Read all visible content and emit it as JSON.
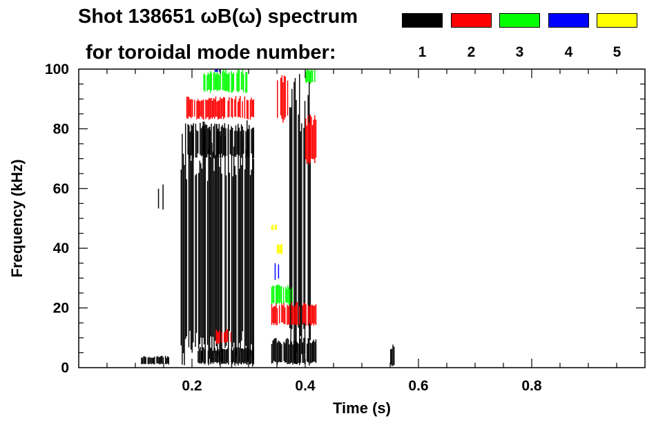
{
  "title": {
    "line1": "Shot 138651 ωB(ω) spectrum",
    "line2": "for toroidal mode number:"
  },
  "legend": {
    "items": [
      {
        "label": "1",
        "color": "#000000"
      },
      {
        "label": "2",
        "color": "#ff0000"
      },
      {
        "label": "3",
        "color": "#00ff00"
      },
      {
        "label": "4",
        "color": "#0000ff"
      },
      {
        "label": "5",
        "color": "#ffff00"
      }
    ]
  },
  "chart_data": {
    "type": "heatmap",
    "title": "Shot 138651 ωB(ω) spectrum for toroidal mode number:",
    "xlabel": "Time (s)",
    "ylabel": "Frequency (kHz)",
    "xlim": [
      0.0,
      1.0
    ],
    "ylim": [
      0,
      100
    ],
    "x_ticks": [
      "0.2",
      "0.4",
      "0.6",
      "0.8"
    ],
    "y_ticks": [
      "0",
      "20",
      "40",
      "60",
      "80",
      "100"
    ],
    "grid": false,
    "legend_position": "top-right",
    "series": [
      {
        "mode": 1,
        "color": "#000000",
        "regions": [
          {
            "t": [
              0.18,
              0.31
            ],
            "f": [
              0,
              83
            ]
          },
          {
            "t": [
              0.19,
              0.31
            ],
            "f": [
              70,
              82
            ]
          },
          {
            "t": [
              0.14,
              0.15
            ],
            "f": [
              52,
              62
            ]
          },
          {
            "t": [
              0.11,
              0.16
            ],
            "f": [
              1,
              4
            ]
          },
          {
            "t": [
              0.21,
              0.31
            ],
            "f": [
              1,
              7
            ]
          },
          {
            "t": [
              0.34,
              0.42
            ],
            "f": [
              1,
              10
            ]
          },
          {
            "t": [
              0.37,
              0.41
            ],
            "f": [
              0,
              100
            ]
          },
          {
            "t": [
              0.55,
              0.56
            ],
            "f": [
              0,
              8
            ]
          }
        ]
      },
      {
        "mode": 2,
        "color": "#ff0000",
        "regions": [
          {
            "t": [
              0.19,
              0.31
            ],
            "f": [
              83,
              91
            ]
          },
          {
            "t": [
              0.34,
              0.42
            ],
            "f": [
              14,
              22
            ]
          },
          {
            "t": [
              0.35,
              0.37
            ],
            "f": [
              82,
              100
            ]
          },
          {
            "t": [
              0.4,
              0.42
            ],
            "f": [
              68,
              85
            ]
          },
          {
            "t": [
              0.24,
              0.27
            ],
            "f": [
              8,
              13
            ]
          }
        ]
      },
      {
        "mode": 3,
        "color": "#00ff00",
        "regions": [
          {
            "t": [
              0.22,
              0.3
            ],
            "f": [
              92,
              100
            ]
          },
          {
            "t": [
              0.34,
              0.38
            ],
            "f": [
              21,
              28
            ]
          },
          {
            "t": [
              0.4,
              0.42
            ],
            "f": [
              95,
              100
            ]
          }
        ]
      },
      {
        "mode": 4,
        "color": "#0000ff",
        "regions": [
          {
            "t": [
              0.346,
              0.356
            ],
            "f": [
              29,
              35
            ]
          },
          {
            "t": [
              0.24,
              0.25
            ],
            "f": [
              99,
              100
            ]
          }
        ]
      },
      {
        "mode": 5,
        "color": "#ffff00",
        "regions": [
          {
            "t": [
              0.35,
              0.36
            ],
            "f": [
              38,
              42
            ]
          },
          {
            "t": [
              0.34,
              0.35
            ],
            "f": [
              46,
              48
            ]
          }
        ]
      }
    ]
  }
}
